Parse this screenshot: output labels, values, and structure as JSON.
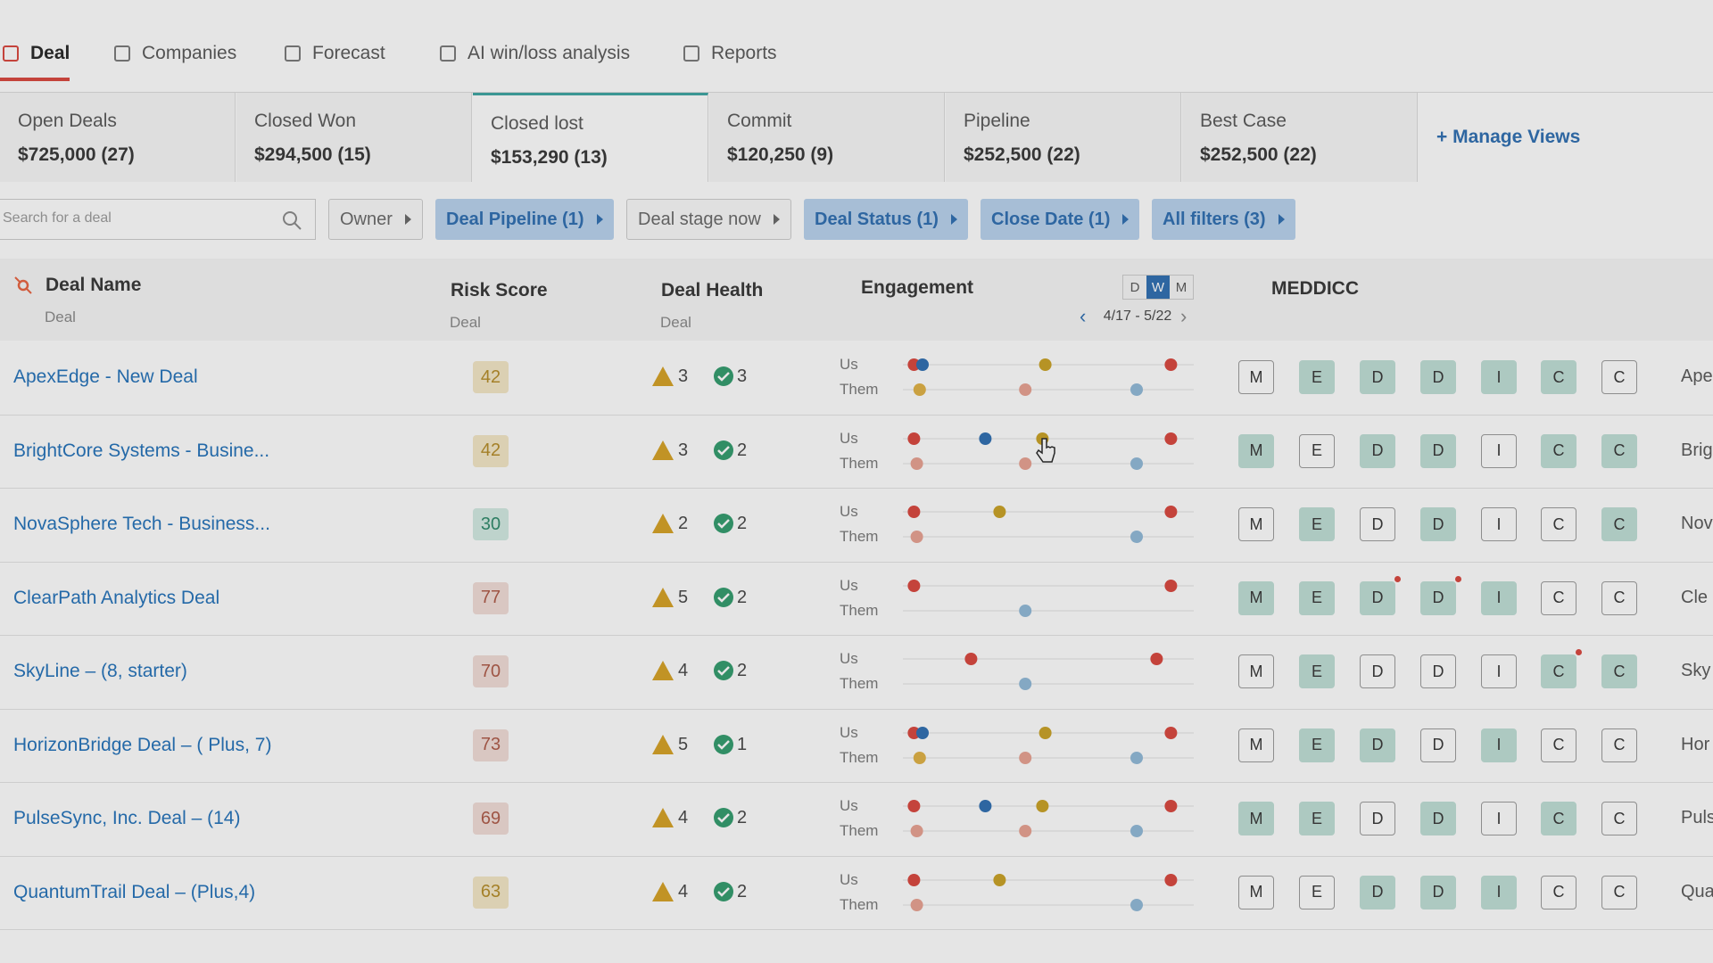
{
  "tabs": [
    "Deal",
    "Companies",
    "Forecast",
    "AI win/loss analysis",
    "Reports"
  ],
  "views": [
    {
      "name": "Open Deals",
      "value": "$725,000 (27)"
    },
    {
      "name": "Closed Won",
      "value": "$294,500 (15)"
    },
    {
      "name": "Closed lost",
      "value": "$153,290 (13)"
    },
    {
      "name": "Commit",
      "value": "$120,250 (9)"
    },
    {
      "name": "Pipeline",
      "value": "$252,500 (22)"
    },
    {
      "name": "Best Case",
      "value": "$252,500 (22)"
    }
  ],
  "manage_views": "+ Manage Views",
  "search_placeholder": "Search for a deal",
  "filters": [
    {
      "label": "Owner",
      "active": false
    },
    {
      "label": "Deal Pipeline (1)",
      "active": true
    },
    {
      "label": "Deal stage now",
      "active": false
    },
    {
      "label": "Deal Status (1)",
      "active": true
    },
    {
      "label": "Close Date (1)",
      "active": true
    },
    {
      "label": "All filters (3)",
      "active": true
    }
  ],
  "columns": {
    "deal_name": "Deal Name",
    "deal_name_sub": "Deal",
    "risk_score": "Risk Score",
    "risk_score_sub": "Deal",
    "deal_health": "Deal Health",
    "deal_health_sub": "Deal",
    "engagement": "Engagement",
    "period_buttons": [
      "D",
      "W",
      "M"
    ],
    "date_range": "4/17 - 5/22",
    "meddicc": "MEDDICC"
  },
  "engagement_labels": [
    "Us",
    "Them"
  ],
  "meddicc_letters": [
    "M",
    "E",
    "D",
    "D",
    "I",
    "C",
    "C"
  ],
  "rows": [
    {
      "name": "ApexEdge - New Deal",
      "risk": 42,
      "risk_color": "yellow",
      "warnings": 3,
      "checks": 3,
      "meddicc": [
        "empty",
        "filled",
        "filled",
        "filled",
        "filled",
        "filled",
        "empty"
      ],
      "account": "Ape"
    },
    {
      "name": "BrightCore Systems - Busine...",
      "risk": 42,
      "risk_color": "yellow",
      "warnings": 3,
      "checks": 2,
      "meddicc": [
        "filled",
        "empty",
        "filled",
        "filled",
        "empty",
        "filled",
        "filled"
      ],
      "account": "Brig"
    },
    {
      "name": "NovaSphere Tech - Business...",
      "risk": 30,
      "risk_color": "green",
      "warnings": 2,
      "checks": 2,
      "meddicc": [
        "empty",
        "filled",
        "empty",
        "filled",
        "empty",
        "empty",
        "filled"
      ],
      "account": "Nov"
    },
    {
      "name": "ClearPath Analytics Deal",
      "risk": 77,
      "risk_color": "red",
      "warnings": 5,
      "checks": 2,
      "meddicc": [
        "filled",
        "filled",
        "filled-alert",
        "filled-alert",
        "filled",
        "empty",
        "empty"
      ],
      "account": "Cle"
    },
    {
      "name": "SkyLine – (8, starter)",
      "risk": 70,
      "risk_color": "red",
      "warnings": 4,
      "checks": 2,
      "meddicc": [
        "empty",
        "filled",
        "empty",
        "empty",
        "empty",
        "filled-alert",
        "filled"
      ],
      "account": "Sky"
    },
    {
      "name": "HorizonBridge Deal – ( Plus, 7)",
      "risk": 73,
      "risk_color": "red",
      "warnings": 5,
      "checks": 1,
      "meddicc": [
        "empty",
        "filled",
        "filled",
        "empty",
        "filled",
        "empty",
        "empty"
      ],
      "account": "Hor"
    },
    {
      "name": "PulseSync, Inc. Deal – (14)",
      "risk": 69,
      "risk_color": "red",
      "warnings": 4,
      "checks": 2,
      "meddicc": [
        "filled",
        "filled",
        "empty",
        "filled",
        "empty",
        "filled",
        "empty"
      ],
      "account": "Puls"
    },
    {
      "name": "QuantumTrail Deal – (Plus,4)",
      "risk": 63,
      "risk_color": "yellow",
      "warnings": 4,
      "checks": 2,
      "meddicc": [
        "empty",
        "empty",
        "filled",
        "filled",
        "filled",
        "empty",
        "empty"
      ],
      "account": "Qua"
    }
  ]
}
